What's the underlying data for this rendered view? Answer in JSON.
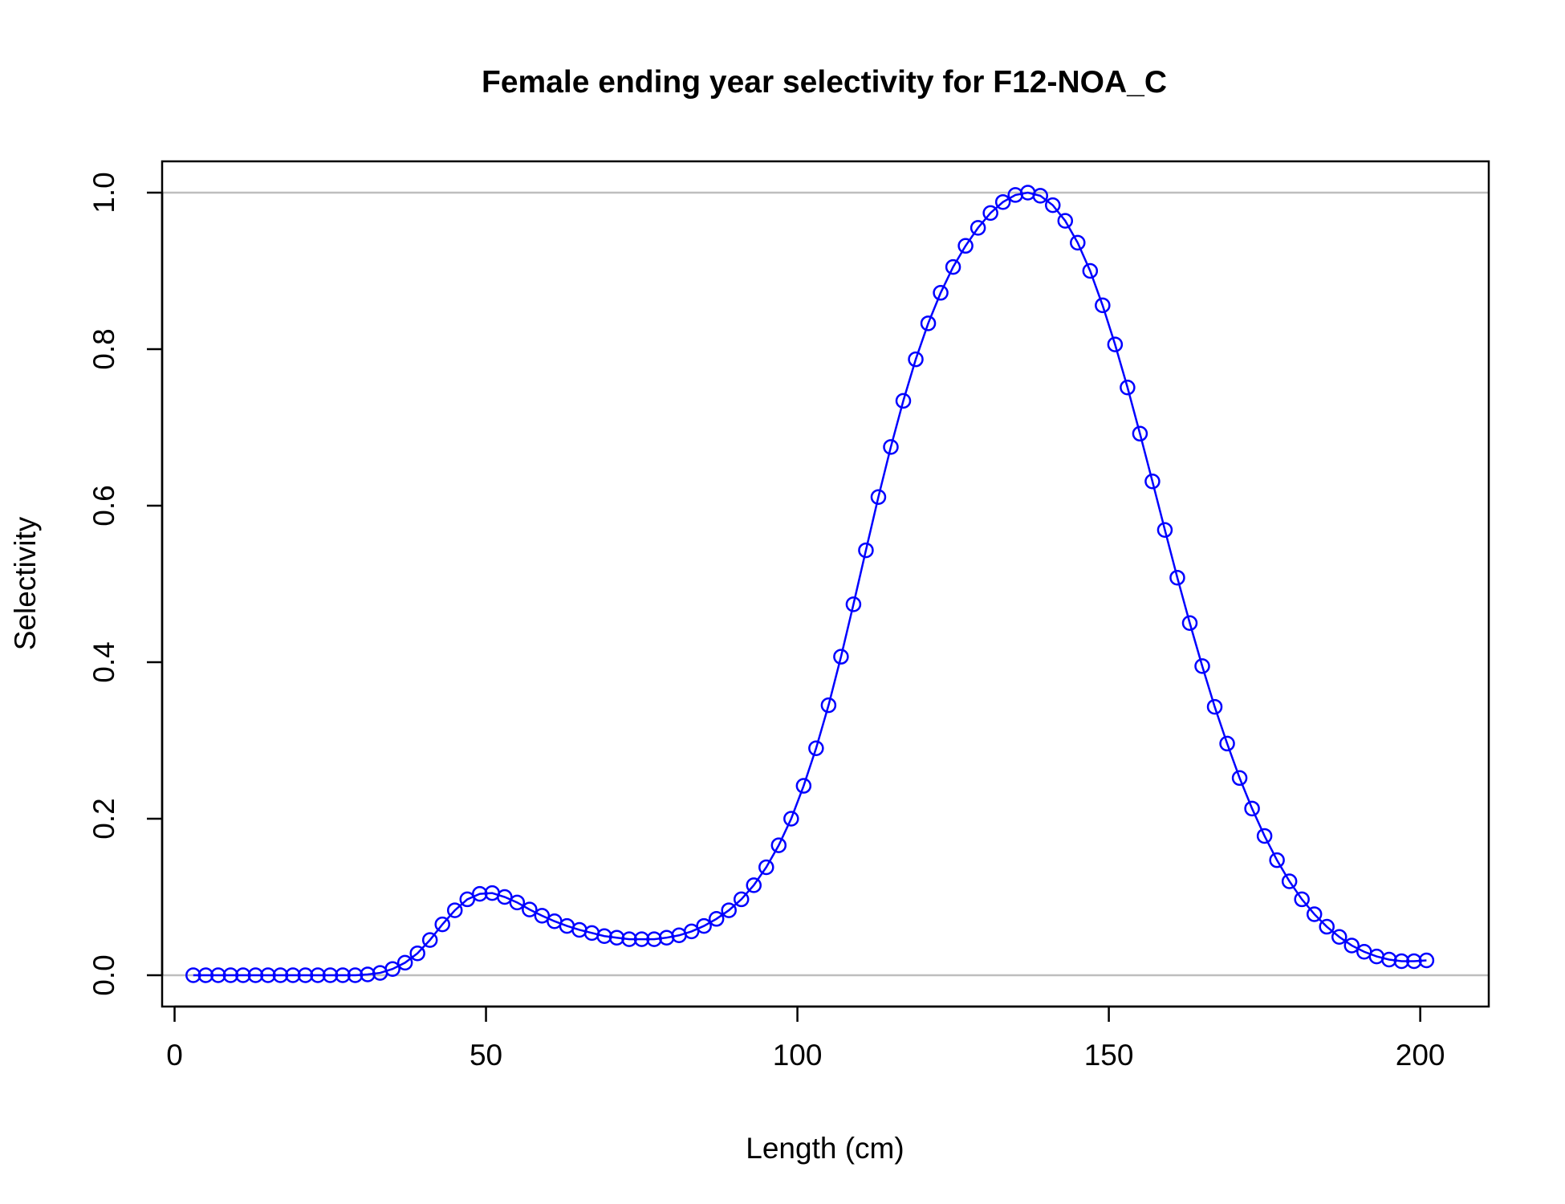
{
  "chart_data": {
    "type": "line",
    "title": "Female ending year selectivity for F12-NOA_C",
    "xlabel": "Length (cm)",
    "ylabel": "Selectivity",
    "xlim": [
      -2,
      211
    ],
    "ylim": [
      -0.04,
      1.04
    ],
    "x_ticks": [
      0,
      50,
      100,
      150,
      200
    ],
    "y_ticks": [
      0.0,
      0.2,
      0.4,
      0.6,
      0.8,
      1.0
    ],
    "x_tick_labels": [
      "0",
      "50",
      "100",
      "150",
      "200"
    ],
    "y_tick_labels": [
      "0.0",
      "0.2",
      "0.4",
      "0.6",
      "0.8",
      "1.0"
    ],
    "reference_lines_y": [
      0,
      1
    ],
    "reference_line_color": "#bebebe",
    "series": [
      {
        "color": "#0000ff",
        "marker": "open-circle",
        "x": [
          3,
          5,
          7,
          9,
          11,
          13,
          15,
          17,
          19,
          21,
          23,
          25,
          27,
          29,
          31,
          33,
          35,
          37,
          39,
          41,
          43,
          45,
          47,
          49,
          51,
          53,
          55,
          57,
          59,
          61,
          63,
          65,
          67,
          69,
          71,
          73,
          75,
          77,
          79,
          81,
          83,
          85,
          87,
          89,
          91,
          93,
          95,
          97,
          99,
          101,
          103,
          105,
          107,
          109,
          111,
          113,
          115,
          117,
          119,
          121,
          123,
          125,
          127,
          129,
          131,
          133,
          135,
          137,
          139,
          141,
          143,
          145,
          147,
          149,
          151,
          153,
          155,
          157,
          159,
          161,
          163,
          165,
          167,
          169,
          171,
          173,
          175,
          177,
          179,
          181,
          183,
          185,
          187,
          189,
          191,
          193,
          195,
          197,
          199,
          201
        ],
        "y": [
          0.0,
          0.0,
          0.0,
          0.0,
          0.0,
          0.0,
          0.0,
          0.0,
          0.0,
          0.0,
          0.0,
          0.0,
          0.0,
          0.0,
          0.001,
          0.003,
          0.008,
          0.016,
          0.028,
          0.045,
          0.065,
          0.083,
          0.097,
          0.104,
          0.105,
          0.1,
          0.093,
          0.084,
          0.076,
          0.069,
          0.063,
          0.058,
          0.054,
          0.05,
          0.048,
          0.046,
          0.046,
          0.046,
          0.048,
          0.051,
          0.056,
          0.063,
          0.072,
          0.083,
          0.097,
          0.115,
          0.138,
          0.166,
          0.2,
          0.242,
          0.29,
          0.345,
          0.407,
          0.474,
          0.543,
          0.611,
          0.675,
          0.734,
          0.787,
          0.833,
          0.872,
          0.905,
          0.932,
          0.955,
          0.974,
          0.988,
          0.997,
          1.0,
          0.996,
          0.984,
          0.964,
          0.936,
          0.9,
          0.856,
          0.806,
          0.751,
          0.692,
          0.631,
          0.569,
          0.508,
          0.45,
          0.395,
          0.343,
          0.296,
          0.252,
          0.213,
          0.178,
          0.147,
          0.12,
          0.097,
          0.078,
          0.062,
          0.049,
          0.038,
          0.03,
          0.024,
          0.02,
          0.018,
          0.018,
          0.019
        ]
      }
    ]
  }
}
